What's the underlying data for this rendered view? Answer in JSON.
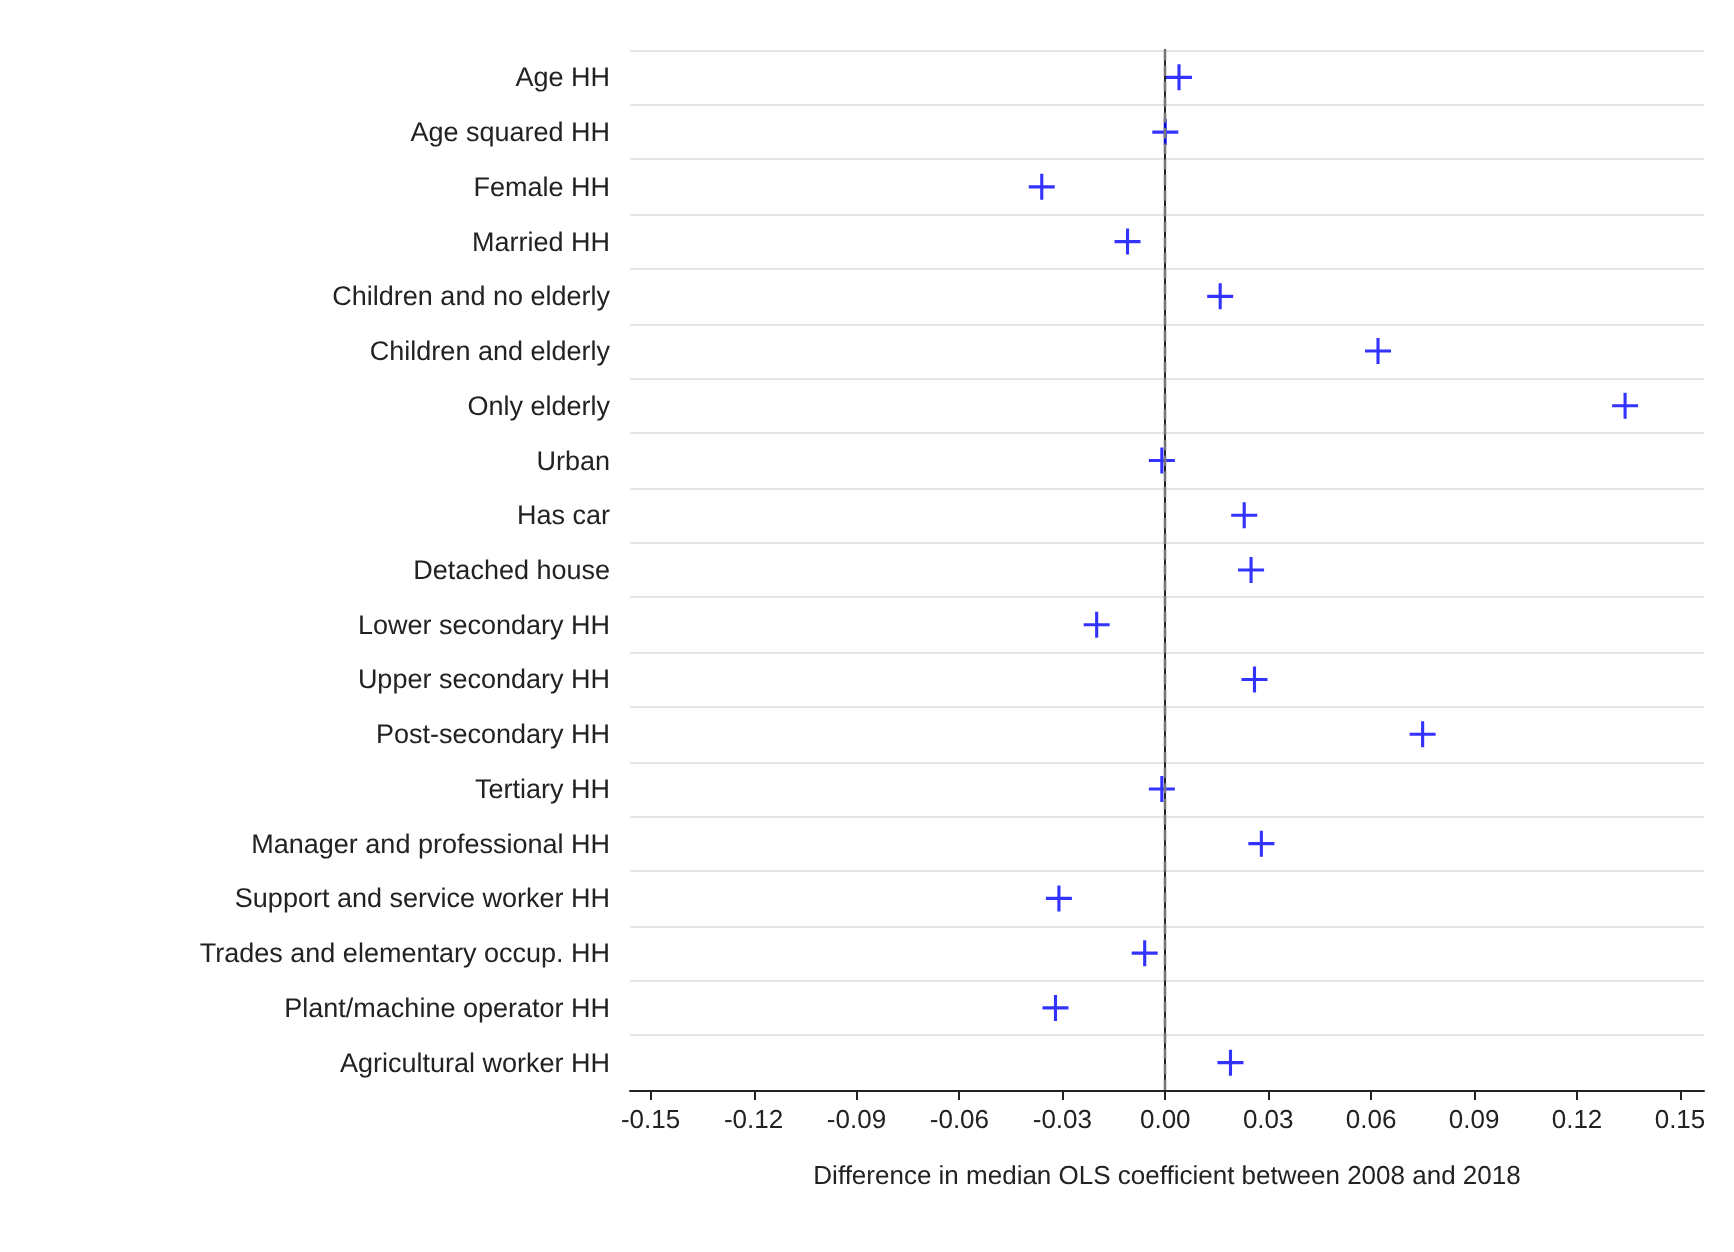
{
  "chart_data": {
    "type": "scatter",
    "orientation": "horizontal",
    "xlabel": "Difference in median OLS coefficient between 2008 and 2018",
    "categories": [
      "Age HH",
      "Age squared HH",
      "Female HH",
      "Married HH",
      "Children and no elderly",
      "Children and elderly",
      "Only elderly",
      "Urban",
      "Has car",
      "Detached house",
      "Lower secondary HH",
      "Upper secondary HH",
      "Post-secondary HH",
      "Tertiary HH",
      "Manager and professional HH",
      "Support and service worker HH",
      "Trades and elementary occup. HH",
      "Plant/machine operator HH",
      "Agricultural worker HH"
    ],
    "series": [
      {
        "color": "#0000ff",
        "values": [
          0.004,
          0.0,
          -0.036,
          -0.011,
          0.016,
          0.062,
          0.134,
          -0.001,
          0.023,
          0.025,
          -0.02,
          0.026,
          0.075,
          -0.001,
          0.028,
          -0.031,
          -0.006,
          -0.032,
          0.019
        ]
      }
    ],
    "xlim": [
      -0.156,
      0.157
    ],
    "xticks": [
      {
        "value": -0.15,
        "label": "-0.15"
      },
      {
        "value": -0.12,
        "label": "-0.12"
      },
      {
        "value": -0.09,
        "label": "-0.09"
      },
      {
        "value": -0.06,
        "label": "-0.06"
      },
      {
        "value": -0.03,
        "label": "-0.03"
      },
      {
        "value": 0,
        "label": "0.00"
      },
      {
        "value": 0.03,
        "label": "0.03"
      },
      {
        "value": 0.06,
        "label": "0.06"
      },
      {
        "value": 0.09,
        "label": "0.09"
      },
      {
        "value": 0.12,
        "label": "0.12"
      },
      {
        "value": 0.15,
        "label": "0.15"
      }
    ],
    "ref_lines": [
      {
        "axis": "x",
        "value": 0,
        "color": "#777777",
        "line_style": "dashed"
      }
    ],
    "grid": "y",
    "marker": "cross"
  }
}
